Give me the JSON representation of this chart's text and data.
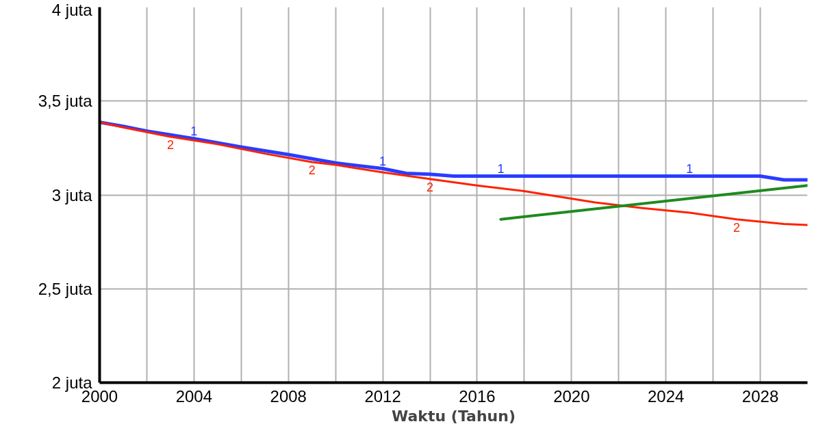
{
  "chart_data": {
    "type": "line",
    "xlabel": "Waktu (Tahun)",
    "xlim": [
      2000,
      2030
    ],
    "xticks": [
      2000,
      {
        "value": 2002,
        "label": null
      },
      2004,
      {
        "value": 2006,
        "label": null
      },
      2008,
      {
        "value": 2010,
        "label": null
      },
      2012,
      {
        "value": 2014,
        "label": null
      },
      2016,
      {
        "value": 2018,
        "label": null
      },
      2020,
      {
        "value": 2022,
        "label": null
      },
      2024,
      {
        "value": 2026,
        "label": null
      },
      2028
    ],
    "ylim": [
      2,
      4
    ],
    "yticks": [
      {
        "value": 2,
        "label": "2 juta"
      },
      {
        "value": 2.5,
        "label": "2,5 juta"
      },
      {
        "value": 3,
        "label": "3 juta"
      },
      {
        "value": 3.5,
        "label": "3,5 juta"
      },
      {
        "value": 4,
        "label": "4 juta"
      }
    ],
    "grid": true,
    "line_style": "solid",
    "marker": "none",
    "series": [
      {
        "name": "1",
        "color": "#2a3cff",
        "x": [
          2000,
          2001,
          2002,
          2004,
          2006,
          2008,
          2010,
          2012,
          2013,
          2014,
          2015,
          2017,
          2019,
          2021,
          2023,
          2025,
          2026,
          2028,
          2029,
          2030
        ],
        "values": [
          3.387,
          3.365,
          3.34,
          3.3,
          3.255,
          3.215,
          3.17,
          3.14,
          3.115,
          3.11,
          3.1,
          3.1,
          3.1,
          3.1,
          3.1,
          3.1,
          3.1,
          3.1,
          3.08,
          3.08
        ]
      },
      {
        "name": "2",
        "color": "#ff2200",
        "x": [
          2000,
          2001,
          2003,
          2005,
          2007,
          2009,
          2010,
          2012,
          2014,
          2016,
          2018,
          2020,
          2021,
          2023,
          2025,
          2027,
          2029,
          2030
        ],
        "values": [
          3.387,
          3.36,
          3.31,
          3.27,
          3.22,
          3.175,
          3.16,
          3.12,
          3.085,
          3.05,
          3.02,
          2.98,
          2.96,
          2.93,
          2.905,
          2.87,
          2.845,
          2.84
        ]
      },
      {
        "color": "#1f8a1f",
        "x": [
          2017,
          2030
        ],
        "values": [
          2.87,
          3.05
        ]
      }
    ]
  }
}
